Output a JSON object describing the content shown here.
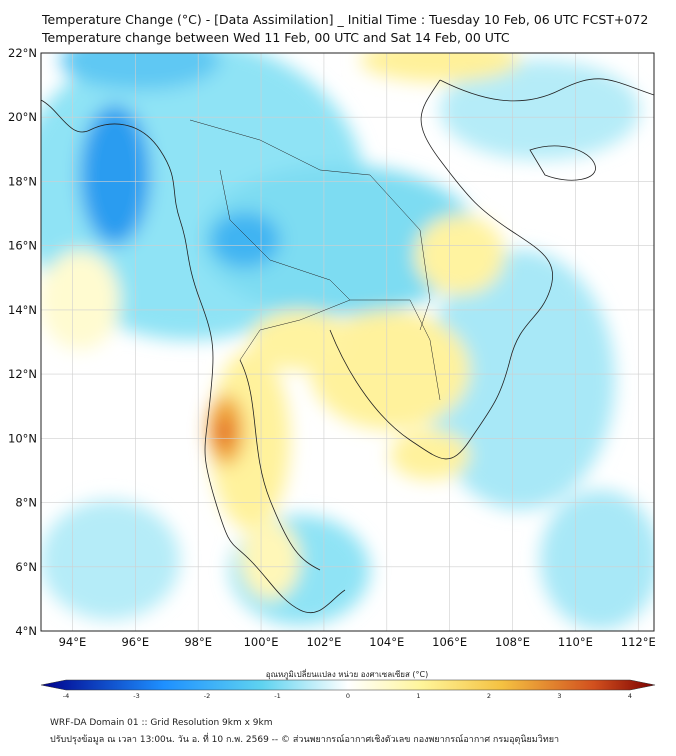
{
  "title": {
    "line1": "Temperature Change (°C) - [Data Assimilation] _ Initial Time : Tuesday 10 Feb, 06 UTC FCST+072",
    "line2": "Temperature change between Wed 11 Feb, 00 UTC and Sat 14 Feb, 00 UTC"
  },
  "map": {
    "x_ticks": [
      "94°E",
      "96°E",
      "98°E",
      "100°E",
      "102°E",
      "104°E",
      "106°E",
      "108°E",
      "110°E",
      "112°E"
    ],
    "y_ticks": [
      "22°N",
      "20°N",
      "18°N",
      "16°N",
      "14°N",
      "12°N",
      "10°N",
      "8°N",
      "6°N",
      "4°N"
    ],
    "lon_range": [
      93,
      112.5
    ],
    "lat_range": [
      4,
      22
    ]
  },
  "colorbar": {
    "title": "อุณหภูมิเปลี่ยนแปลง หน่วย องศาเซลเซียส (°C)",
    "ticks": [
      "-4",
      "-3",
      "-2",
      "-1",
      "0",
      "1",
      "2",
      "3",
      "4"
    ],
    "range": [
      -4,
      4
    ],
    "colors": {
      "strong_cool": "#00008b",
      "cool": "#1e90ff",
      "light_cool": "#5fd3f0",
      "neutral": "#ffffff",
      "light_warm": "#fff59a",
      "warm": "#f5c242",
      "strong_warm": "#d2501e",
      "extreme_warm": "#7a0000"
    }
  },
  "footer": {
    "line1": "WRF-DA Domain 01 :: Grid Resolution 9km x 9km",
    "line2": "ปรับปรุงข้อมูล ณ เวลา 13:00น. วัน อ. ที่ 10 ก.พ. 2569 -- © ส่วนพยากรณ์อากาศเชิงตัวเลข กองพยากรณ์อากาศ กรมอุตุนิยมวิทยา"
  }
}
